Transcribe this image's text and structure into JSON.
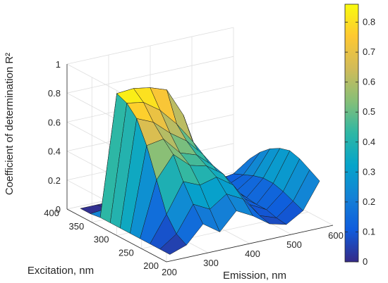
{
  "chart_data": {
    "type": "surface",
    "zlabel": "Coefficient of determination R²",
    "xlabel": "Emission, nm",
    "ylabel": "Excitation, nm",
    "emission_ticks": [
      "200",
      "300",
      "400",
      "500",
      "600"
    ],
    "excitation_ticks": [
      "200",
      "250",
      "300",
      "350",
      "400"
    ],
    "z_ticks": [
      "0",
      "0.2",
      "0.4",
      "0.6",
      "0.8",
      "1"
    ],
    "xlim": [
      200,
      600
    ],
    "ylim": [
      200,
      400
    ],
    "zlim": [
      0,
      1
    ],
    "grid": true,
    "colormap": "parula",
    "colorbar": {
      "limits": [
        0,
        0.86
      ],
      "ticks": [
        "0",
        "0.1",
        "0.2",
        "0.3",
        "0.4",
        "0.5",
        "0.6",
        "0.7",
        "0.8"
      ],
      "colors": [
        "#352a87",
        "#0f5cdd",
        "#1481d6",
        "#06a4ca",
        "#2eb7a4",
        "#87bf77",
        "#d1bb59",
        "#fec832",
        "#f9fb0e"
      ]
    },
    "surface": {
      "emission_grid": [
        220,
        260,
        300,
        340,
        380,
        420,
        460,
        500,
        540,
        580
      ],
      "excitation_grid": [
        210,
        230,
        250,
        270,
        290,
        310,
        330,
        350,
        370,
        390
      ],
      "r2": [
        [
          0.02,
          0.06,
          0.18,
          0.1,
          0.22,
          0.16,
          0.08,
          0.05,
          0.12,
          0.3
        ],
        [
          0.02,
          0.1,
          0.28,
          0.22,
          0.3,
          0.24,
          0.1,
          0.06,
          0.15,
          0.34
        ],
        [
          0.02,
          0.2,
          0.4,
          0.35,
          0.38,
          0.3,
          0.14,
          0.08,
          0.18,
          0.38
        ],
        [
          0.02,
          0.4,
          0.55,
          0.45,
          0.42,
          0.34,
          0.16,
          0.08,
          0.2,
          0.4
        ],
        [
          0.02,
          0.6,
          0.62,
          0.5,
          0.46,
          0.36,
          0.18,
          0.09,
          0.2,
          0.38
        ],
        [
          0.02,
          0.75,
          0.7,
          0.6,
          0.52,
          0.4,
          0.2,
          0.1,
          0.18,
          0.34
        ],
        [
          0.02,
          0.82,
          0.8,
          0.72,
          0.6,
          0.45,
          0.22,
          0.1,
          0.15,
          0.28
        ],
        [
          0.02,
          0.85,
          0.86,
          0.84,
          0.8,
          0.6,
          0.25,
          0.1,
          0.12,
          0.2
        ],
        [
          0.01,
          0.02,
          0.02,
          0.02,
          0.02,
          0.02,
          0.02,
          0.02,
          0.02,
          0.02
        ],
        [
          0.01,
          0.01,
          0.01,
          0.01,
          0.01,
          0.01,
          0.01,
          0.01,
          0.01,
          0.01
        ]
      ]
    }
  }
}
